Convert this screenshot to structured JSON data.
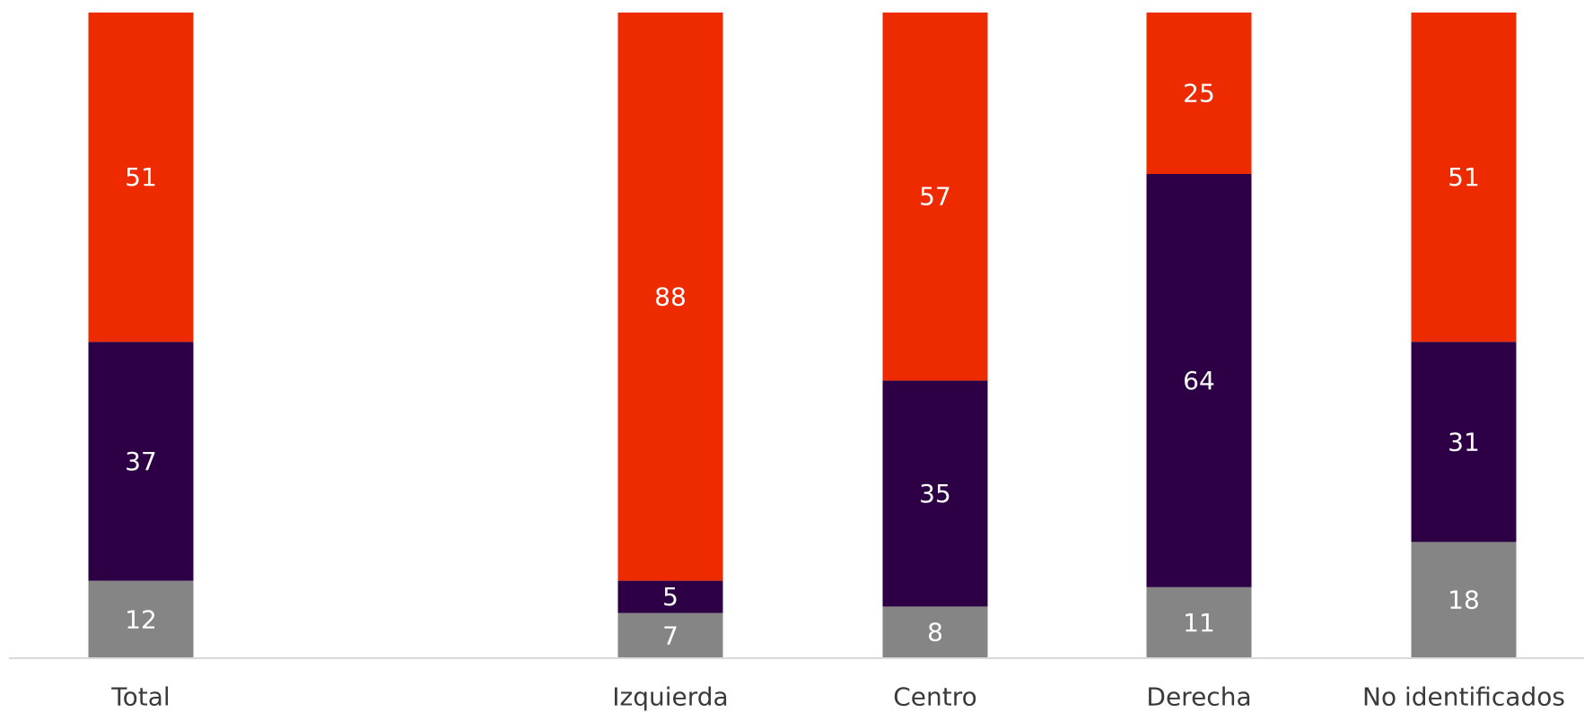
{
  "chart_data": {
    "type": "bar",
    "stacked": true,
    "orientation": "vertical",
    "categories": [
      "Total",
      "Izquierda",
      "Centro",
      "Derecha",
      "No identificados"
    ],
    "series": [
      {
        "values": [
          12,
          7,
          8,
          11,
          18
        ],
        "color": "#858585"
      },
      {
        "values": [
          37,
          5,
          35,
          64,
          31
        ],
        "color": "#2d0045"
      },
      {
        "values": [
          51,
          88,
          57,
          25,
          51
        ],
        "color": "#ee2a00"
      }
    ],
    "ylim": [
      0,
      100
    ],
    "title": "",
    "xlabel": "",
    "ylabel": "",
    "grid": false,
    "legend": "none",
    "baseline_color": "#d9d9d9",
    "label_color": "#ffffff"
  }
}
